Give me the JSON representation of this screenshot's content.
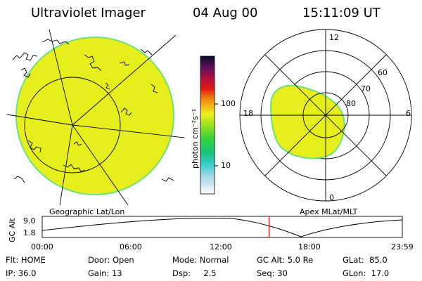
{
  "header": {
    "title": "Ultraviolet Imager",
    "date": "04 Aug 00",
    "time": "15:11:09 UT"
  },
  "colorbar": {
    "unit_label": "photon cm⁻²s⁻¹",
    "tick_100": "100",
    "tick_10": "10"
  },
  "panels": {
    "left_caption": "Geographic Lat/Lon",
    "right_caption": "Apex MLat/MLT"
  },
  "polar_grid": {
    "mlt_top": "12",
    "mlt_bottom": "0",
    "mlt_left": "18",
    "mlt_right": "6",
    "lat_60": "60",
    "lat_70": "70",
    "lat_80": "80"
  },
  "timeline": {
    "ylabel": "GC Alt",
    "y_top": "9.0",
    "y_bottom": "1.8",
    "x_ticks": [
      "00:00",
      "06:00",
      "12:00",
      "18:00",
      "23:59"
    ],
    "current_time_fraction": 0.63,
    "marker_color": "#e00000"
  },
  "info": {
    "flt": "Flt: HOME",
    "ip": "IP: 36.0",
    "door": "Door: Open",
    "gain": "Gain: 13",
    "mode": "Mode: Normal",
    "dsp": "Dsp:     2.5",
    "gcalt": "GC Alt: 5.0 Re",
    "seq": "Seq: 30",
    "glat": "GLat:  85.0",
    "glon": "GLon:  17.0"
  },
  "colors": {
    "aurora_fill": "#e6ef1c",
    "aurora_edge": "#6fe07a"
  }
}
